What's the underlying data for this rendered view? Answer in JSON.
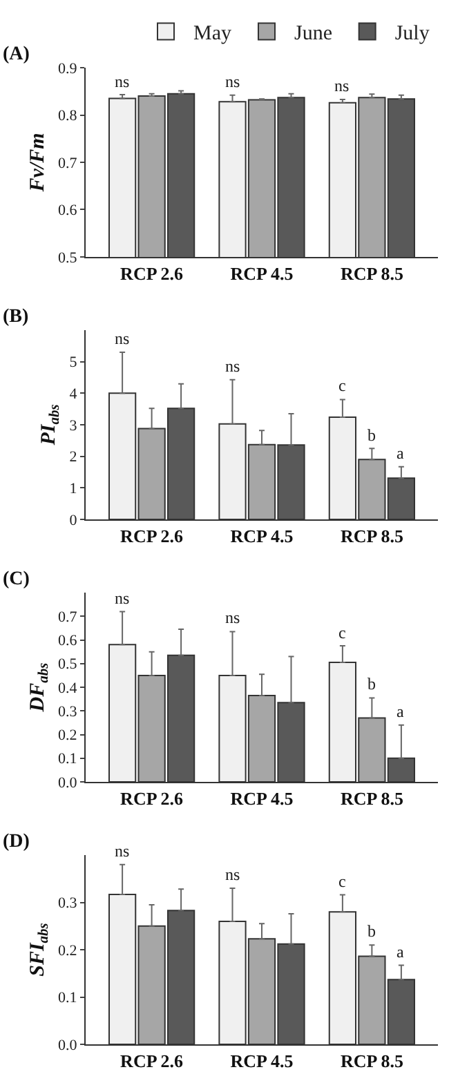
{
  "chart_data": [
    {
      "type": "bar",
      "title": "(A)",
      "ylabel": "Fv/Fm",
      "categories": [
        "RCP 2.6",
        "RCP 4.5",
        "RCP 8.5"
      ],
      "ylim": [
        0.5,
        0.9
      ],
      "yticks": [
        0.5,
        0.6,
        0.7,
        0.8,
        0.9
      ],
      "legend": "top right",
      "series": [
        {
          "name": "May",
          "color": "#f0f0f0",
          "values": [
            0.835,
            0.828,
            0.826
          ],
          "errors": [
            [
              0.835,
              0.843
            ],
            [
              0.828,
              0.842
            ],
            [
              0.826,
              0.833
            ]
          ],
          "value_labels": [
            "ns",
            "ns",
            "ns"
          ]
        },
        {
          "name": "June",
          "color": "#a6a6a6",
          "values": [
            0.84,
            0.832,
            0.837
          ],
          "errors": [
            [
              0.84,
              0.845
            ],
            [
              0.832,
              0.834
            ],
            [
              0.837,
              0.844
            ]
          ]
        },
        {
          "name": "July",
          "color": "#595959",
          "values": [
            0.845,
            0.837,
            0.834
          ],
          "errors": [
            [
              0.845,
              0.851
            ],
            [
              0.837,
              0.845
            ],
            [
              0.834,
              0.842
            ]
          ]
        }
      ]
    },
    {
      "type": "bar",
      "title": "(B)",
      "ylabel": "PI$_{abs}$",
      "categories": [
        "RCP 2.6",
        "RCP 4.5",
        "RCP 8.5"
      ],
      "ylim": [
        0,
        6
      ],
      "yticks": [
        0,
        1,
        2,
        3,
        4,
        5
      ],
      "series": [
        {
          "color": "#f0f0f0",
          "values": [
            4.0,
            3.03,
            3.24
          ],
          "errors": [
            [
              4.0,
              5.3
            ],
            [
              3.03,
              4.43
            ],
            [
              3.24,
              3.8
            ]
          ],
          "value_labels": [
            "ns",
            "ns",
            "c"
          ]
        },
        {
          "color": "#a6a6a6",
          "values": [
            2.88,
            2.37,
            1.9
          ],
          "errors": [
            [
              2.88,
              3.52
            ],
            [
              2.37,
              2.82
            ],
            [
              1.9,
              2.25
            ]
          ],
          "value_labels": [
            null,
            null,
            "b"
          ]
        },
        {
          "color": "#595959",
          "values": [
            3.52,
            2.36,
            1.31
          ],
          "errors": [
            [
              3.52,
              4.3
            ],
            [
              2.36,
              3.35
            ],
            [
              1.31,
              1.67
            ]
          ],
          "value_labels": [
            null,
            null,
            "a"
          ]
        }
      ]
    },
    {
      "type": "bar",
      "title": "(C)",
      "ylabel": "DF$_{abs}$",
      "categories": [
        "RCP 2.6",
        "RCP 4.5",
        "RCP 8.5"
      ],
      "ylim": [
        0,
        0.8
      ],
      "yticks": [
        {
          "value": 0,
          "label": "0.0"
        },
        0.1,
        0.2,
        0.3,
        0.4,
        0.5,
        0.6,
        0.7
      ],
      "series": [
        {
          "color": "#f0f0f0",
          "values": [
            0.58,
            0.45,
            0.505
          ],
          "errors": [
            [
              0.58,
              0.72
            ],
            [
              0.45,
              0.635
            ],
            [
              0.505,
              0.575
            ]
          ],
          "value_labels": [
            "ns",
            "ns",
            "c"
          ]
        },
        {
          "color": "#a6a6a6",
          "values": [
            0.45,
            0.365,
            0.27
          ],
          "errors": [
            [
              0.45,
              0.55
            ],
            [
              0.365,
              0.455
            ],
            [
              0.27,
              0.355
            ]
          ],
          "value_labels": [
            null,
            null,
            "b"
          ]
        },
        {
          "color": "#595959",
          "values": [
            0.535,
            0.335,
            0.1
          ],
          "errors": [
            [
              0.535,
              0.645
            ],
            [
              0.335,
              0.53
            ],
            [
              0.1,
              0.24
            ]
          ],
          "value_labels": [
            null,
            null,
            "a"
          ]
        }
      ]
    },
    {
      "type": "bar",
      "title": "(D)",
      "ylabel": "SFI$_{abs}$",
      "categories": [
        "RCP 2.6",
        "RCP 4.5",
        "RCP 8.5"
      ],
      "ylim": [
        0,
        0.4
      ],
      "yticks": [
        {
          "value": 0,
          "label": "0.0"
        },
        0.1,
        0.2,
        0.3
      ],
      "series": [
        {
          "color": "#f0f0f0",
          "values": [
            0.317,
            0.26,
            0.28
          ],
          "errors": [
            [
              0.317,
              0.38
            ],
            [
              0.26,
              0.33
            ],
            [
              0.28,
              0.316
            ]
          ],
          "value_labels": [
            "ns",
            "ns",
            "c"
          ]
        },
        {
          "color": "#a6a6a6",
          "values": [
            0.25,
            0.223,
            0.186
          ],
          "errors": [
            [
              0.25,
              0.295
            ],
            [
              0.223,
              0.255
            ],
            [
              0.186,
              0.21
            ]
          ],
          "value_labels": [
            null,
            null,
            "b"
          ]
        },
        {
          "color": "#595959",
          "values": [
            0.283,
            0.212,
            0.137
          ],
          "errors": [
            [
              0.283,
              0.328
            ],
            [
              0.212,
              0.276
            ],
            [
              0.137,
              0.167
            ]
          ],
          "value_labels": [
            null,
            null,
            "a"
          ]
        }
      ]
    }
  ]
}
